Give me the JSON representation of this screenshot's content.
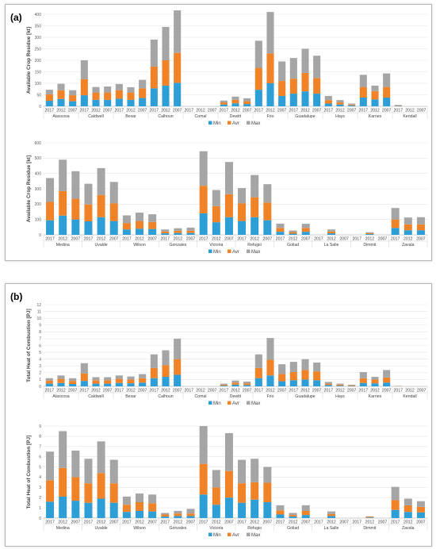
{
  "panel_a_label": "(a)",
  "panel_b_label": "(b)",
  "colors": {
    "Min": "#2e9ed6",
    "Avr": "#f08228",
    "Max": "#a5a5a5"
  },
  "chart_data": [
    {
      "type": "bar",
      "stacked": true,
      "ylabel": "Available Crop Residue [kt]",
      "ylim": [
        0,
        400
      ],
      "yticks": [
        0,
        50,
        100,
        150,
        200,
        250,
        300,
        350,
        400
      ],
      "years": [
        "2017",
        "2012",
        "2007"
      ],
      "groups": [
        "Atascosa",
        "Caldwell",
        "Bexar",
        "Calhoun",
        "Comal",
        "Dewitt",
        "Frio",
        "Guadalupe",
        "Hays",
        "Karnes",
        "Kendall"
      ],
      "series": [
        {
          "name": "Min",
          "values": [
            24,
            32,
            22,
            48,
            28,
            28,
            33,
            28,
            36,
            78,
            90,
            102,
            0,
            0,
            0,
            8,
            13,
            10,
            72,
            100,
            45,
            55,
            65,
            55,
            12,
            8,
            4,
            38,
            30,
            38,
            2,
            0,
            0
          ]
        },
        {
          "name": "Avr",
          "values": [
            28,
            38,
            26,
            70,
            32,
            32,
            37,
            32,
            42,
            95,
            110,
            130,
            0,
            0,
            0,
            9,
            15,
            12,
            95,
            130,
            65,
            65,
            80,
            68,
            15,
            9,
            4,
            46,
            36,
            46,
            2,
            0,
            0
          ]
        },
        {
          "name": "Max",
          "values": [
            20,
            28,
            22,
            82,
            24,
            26,
            27,
            23,
            37,
            117,
            145,
            185,
            0,
            0,
            0,
            8,
            14,
            13,
            118,
            180,
            85,
            90,
            105,
            97,
            18,
            10,
            4,
            53,
            24,
            59,
            2,
            0,
            0
          ]
        }
      ],
      "legend": "bottom"
    },
    {
      "type": "bar",
      "stacked": true,
      "ylabel": "Available Crop Residue [kt]",
      "ylim": [
        0,
        600
      ],
      "yticks": [
        0,
        100,
        200,
        300,
        400,
        500,
        600
      ],
      "years": [
        "2017",
        "2012",
        "2007"
      ],
      "groups": [
        "Medina",
        "Uvalde",
        "Wilson",
        "Gonzales",
        "Victoria",
        "Refugio",
        "Goliad",
        "La Salle",
        "Dimmit",
        "Zavala"
      ],
      "series": [
        {
          "name": "Min",
          "values": [
            95,
            125,
            100,
            88,
            115,
            90,
            35,
            40,
            38,
            10,
            12,
            12,
            140,
            82,
            115,
            90,
            115,
            95,
            20,
            8,
            20,
            0,
            10,
            0,
            0,
            5,
            0,
            45,
            30,
            30
          ]
        },
        {
          "name": "Avr",
          "values": [
            120,
            160,
            135,
            110,
            145,
            115,
            42,
            50,
            46,
            12,
            15,
            15,
            180,
            105,
            150,
            115,
            130,
            115,
            25,
            10,
            25,
            0,
            12,
            0,
            0,
            6,
            0,
            55,
            38,
            38
          ]
        },
        {
          "name": "Max",
          "values": [
            155,
            205,
            180,
            135,
            175,
            140,
            50,
            55,
            50,
            13,
            16,
            20,
            225,
            105,
            210,
            100,
            145,
            120,
            28,
            10,
            27,
            0,
            13,
            0,
            0,
            6,
            0,
            75,
            45,
            47
          ]
        }
      ],
      "legend": "bottom"
    },
    {
      "type": "bar",
      "stacked": true,
      "ylabel": "Total Heat of Combustion [PJ]",
      "ylim": [
        0,
        12
      ],
      "yticks": [
        0,
        1,
        2,
        3,
        4,
        5,
        6,
        7,
        8,
        9,
        10,
        11,
        12
      ],
      "years": [
        "2017",
        "2012",
        "2007"
      ],
      "groups": [
        "Atascosa",
        "Caldwell",
        "Bexar",
        "Calhoun",
        "Comal",
        "Dewitt",
        "Frio",
        "Guadalupe",
        "Hays",
        "Karnes",
        "Kendall"
      ],
      "series": [
        {
          "name": "Min",
          "values": [
            0.4,
            0.5,
            0.35,
            0.8,
            0.4,
            0.4,
            0.5,
            0.45,
            0.55,
            1.2,
            1.4,
            1.7,
            0,
            0,
            0,
            0.1,
            0.25,
            0.2,
            1.2,
            1.6,
            0.75,
            0.9,
            1.0,
            0.9,
            0.2,
            0.1,
            0.05,
            0.5,
            0.45,
            0.55,
            0.02,
            0,
            0
          ]
        },
        {
          "name": "Avr",
          "values": [
            0.45,
            0.6,
            0.45,
            1.1,
            0.5,
            0.5,
            0.6,
            0.55,
            0.65,
            1.5,
            1.7,
            2.3,
            0,
            0,
            0,
            0.15,
            0.3,
            0.25,
            1.5,
            2.3,
            1.05,
            1.2,
            1.4,
            1.3,
            0.2,
            0.15,
            0.1,
            0.7,
            0.55,
            0.75,
            0.03,
            0,
            0
          ]
        },
        {
          "name": "Max",
          "values": [
            0.35,
            0.5,
            0.4,
            1.5,
            0.45,
            0.45,
            0.5,
            0.45,
            0.6,
            2.0,
            2.2,
            3.0,
            0,
            0,
            0,
            0.15,
            0.3,
            0.25,
            2.0,
            3.2,
            1.45,
            1.5,
            1.6,
            1.3,
            0.25,
            0.15,
            0.1,
            0.9,
            0.4,
            1.1,
            0.02,
            0,
            0
          ]
        }
      ],
      "legend": "bottom"
    },
    {
      "type": "bar",
      "stacked": true,
      "ylabel": "Total Heat of Combustion [PJ]",
      "ylim": [
        0,
        9
      ],
      "yticks": [
        0,
        1,
        2,
        3,
        4,
        5,
        6,
        7,
        8,
        9
      ],
      "years": [
        "2017",
        "2012",
        "2007"
      ],
      "groups": [
        "Medina",
        "Uvalde",
        "Wilson",
        "Gonzales",
        "Victoria",
        "Refugio",
        "Goliad",
        "La Salle",
        "Dimmit",
        "Zavala"
      ],
      "series": [
        {
          "name": "Min",
          "values": [
            1.6,
            2.1,
            1.7,
            1.5,
            1.9,
            1.5,
            0.6,
            0.7,
            0.65,
            0.15,
            0.2,
            0.2,
            2.3,
            1.3,
            2.0,
            1.5,
            1.8,
            1.55,
            0.35,
            0.15,
            0.3,
            0,
            0.2,
            0,
            0,
            0.05,
            0,
            0.8,
            0.6,
            0.55
          ]
        },
        {
          "name": "Avr",
          "values": [
            2.1,
            2.8,
            2.3,
            1.9,
            2.5,
            1.9,
            0.7,
            0.85,
            0.8,
            0.2,
            0.25,
            0.25,
            3.0,
            1.7,
            2.6,
            1.9,
            1.7,
            1.9,
            0.4,
            0.15,
            0.4,
            0,
            0.2,
            0,
            0,
            0.07,
            0,
            0.95,
            0.65,
            0.55
          ]
        },
        {
          "name": "Max",
          "values": [
            2.8,
            3.6,
            2.6,
            2.4,
            3.1,
            2.3,
            0.8,
            0.85,
            0.85,
            0.15,
            0.25,
            0.45,
            3.7,
            1.7,
            3.7,
            2.3,
            2.3,
            1.55,
            0.5,
            0.2,
            0.55,
            0,
            0.25,
            0,
            0,
            0.05,
            0,
            1.3,
            0.65,
            0.55
          ]
        }
      ],
      "legend": "bottom"
    }
  ]
}
